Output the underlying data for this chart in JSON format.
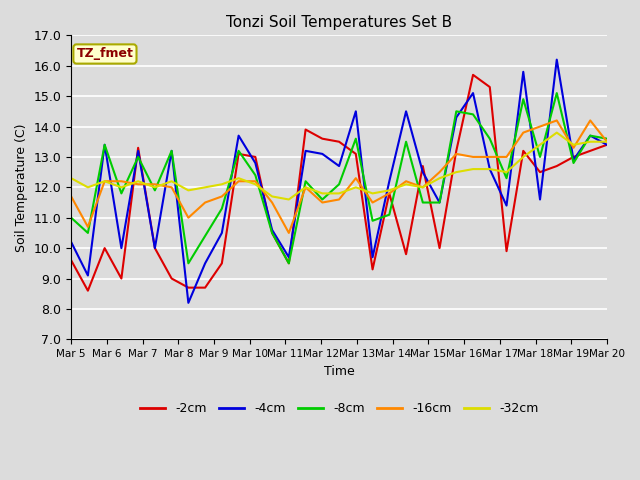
{
  "title": "Tonzi Soil Temperatures Set B",
  "xlabel": "Time",
  "ylabel": "Soil Temperature (C)",
  "ylim": [
    7.0,
    17.0
  ],
  "yticks": [
    7.0,
    8.0,
    9.0,
    10.0,
    11.0,
    12.0,
    13.0,
    14.0,
    15.0,
    16.0,
    17.0
  ],
  "xtick_labels": [
    "Mar 5",
    "Mar 6",
    "Mar 7",
    "Mar 8",
    "Mar 9",
    "Mar 10",
    "Mar 11",
    "Mar 12",
    "Mar 13",
    "Mar 14",
    "Mar 15",
    "Mar 16",
    "Mar 17",
    "Mar 18",
    "Mar 19",
    "Mar 20"
  ],
  "background_color": "#dcdcdc",
  "fig_color": "#dcdcdc",
  "annotation_text": "TZ_fmet",
  "annotation_color": "#8b0000",
  "annotation_bg": "#ffffcc",
  "annotation_edge": "#aaaa00",
  "series": {
    "neg2cm": {
      "color": "#dd0000",
      "label": "-2cm",
      "values": [
        9.6,
        8.6,
        10.0,
        9.0,
        13.3,
        10.0,
        9.0,
        8.7,
        8.7,
        9.5,
        13.1,
        13.0,
        10.5,
        9.5,
        13.9,
        13.6,
        13.5,
        13.1,
        9.3,
        11.8,
        9.8,
        12.7,
        10.0,
        13.2,
        15.7,
        15.3,
        9.9,
        13.2,
        12.5,
        12.7,
        13.0,
        13.2,
        13.4
      ]
    },
    "neg4cm": {
      "color": "#0000dd",
      "label": "-4cm",
      "values": [
        10.2,
        9.1,
        13.4,
        10.0,
        13.2,
        10.0,
        13.2,
        8.2,
        9.5,
        10.5,
        13.7,
        12.8,
        10.6,
        9.7,
        13.2,
        13.1,
        12.7,
        14.5,
        9.7,
        12.2,
        14.5,
        12.5,
        11.5,
        14.3,
        15.1,
        12.6,
        11.4,
        15.8,
        11.6,
        16.2,
        12.9,
        13.7,
        13.4
      ]
    },
    "neg8cm": {
      "color": "#00cc00",
      "label": "-8cm",
      "values": [
        11.0,
        10.5,
        13.4,
        11.8,
        13.0,
        11.9,
        13.2,
        9.5,
        10.4,
        11.3,
        13.2,
        12.4,
        10.5,
        9.5,
        12.2,
        11.6,
        12.1,
        13.6,
        10.9,
        11.1,
        13.5,
        11.5,
        11.5,
        14.5,
        14.4,
        13.6,
        12.3,
        14.9,
        13.0,
        15.1,
        12.8,
        13.7,
        13.6
      ]
    },
    "neg16cm": {
      "color": "#ff8800",
      "label": "-16cm",
      "values": [
        11.7,
        10.7,
        12.2,
        12.2,
        12.1,
        12.1,
        12.0,
        11.0,
        11.5,
        11.7,
        12.2,
        12.2,
        11.5,
        10.5,
        12.0,
        11.5,
        11.6,
        12.3,
        11.5,
        11.8,
        12.2,
        12.0,
        12.5,
        13.1,
        13.0,
        13.0,
        13.0,
        13.8,
        14.0,
        14.2,
        13.3,
        14.2,
        13.5
      ]
    },
    "neg32cm": {
      "color": "#dddd00",
      "label": "-32cm",
      "values": [
        12.3,
        12.0,
        12.2,
        12.0,
        12.2,
        12.0,
        12.2,
        11.9,
        12.0,
        12.1,
        12.3,
        12.1,
        11.7,
        11.6,
        12.0,
        11.8,
        11.8,
        12.0,
        11.8,
        11.9,
        12.1,
        12.0,
        12.3,
        12.5,
        12.6,
        12.6,
        12.5,
        13.0,
        13.4,
        13.8,
        13.4,
        13.5,
        13.5
      ]
    }
  }
}
